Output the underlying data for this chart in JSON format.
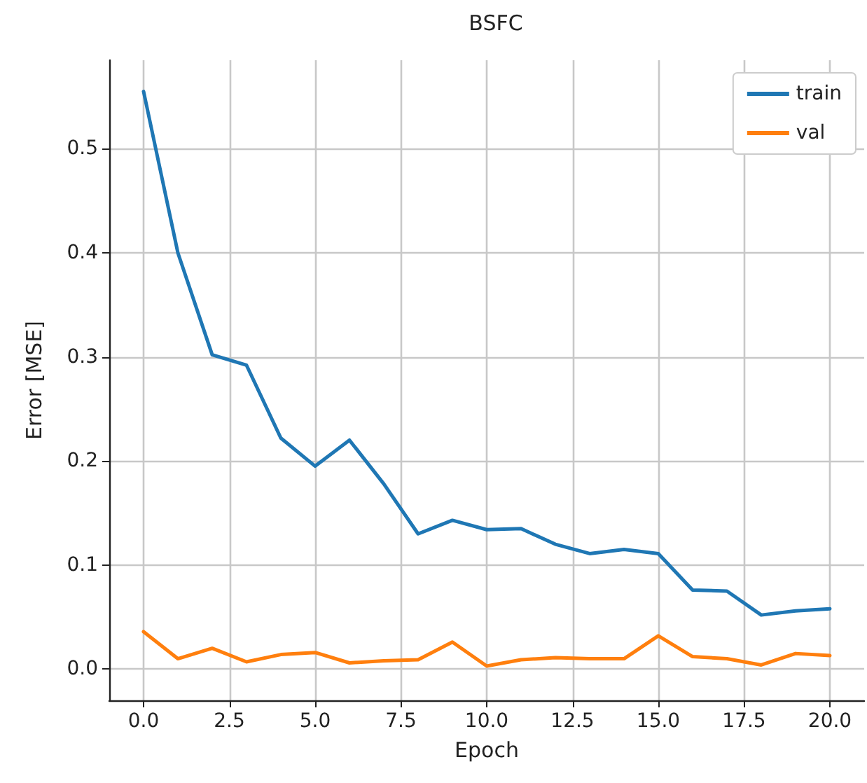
{
  "chart_data": {
    "type": "line",
    "title": "BSFC",
    "xlabel": "Epoch",
    "ylabel": "Error [MSE]",
    "x": [
      0,
      1,
      2,
      3,
      4,
      5,
      6,
      7,
      8,
      9,
      10,
      11,
      12,
      13,
      14,
      15,
      16,
      17,
      18,
      19,
      20
    ],
    "series": [
      {
        "name": "train",
        "color": "#1f77b4",
        "values": [
          0.555,
          0.4,
          0.302,
          0.292,
          0.222,
          0.195,
          0.22,
          0.178,
          0.13,
          0.143,
          0.134,
          0.135,
          0.12,
          0.111,
          0.115,
          0.111,
          0.076,
          0.075,
          0.052,
          0.056,
          0.058
        ]
      },
      {
        "name": "val",
        "color": "#ff7f0e",
        "values": [
          0.036,
          0.01,
          0.02,
          0.007,
          0.014,
          0.016,
          0.006,
          0.008,
          0.009,
          0.026,
          0.003,
          0.009,
          0.011,
          0.01,
          0.01,
          0.032,
          0.012,
          0.01,
          0.004,
          0.015,
          0.013
        ]
      }
    ],
    "xlim": [
      -1,
      21
    ],
    "xticks": [
      {
        "value": 0,
        "label": "0.0"
      },
      {
        "value": 2.5,
        "label": "2.5"
      },
      {
        "value": 5,
        "label": "5.0"
      },
      {
        "value": 7.5,
        "label": "7.5"
      },
      {
        "value": 10,
        "label": "10.0"
      },
      {
        "value": 12.5,
        "label": "12.5"
      },
      {
        "value": 15,
        "label": "15.0"
      },
      {
        "value": 17.5,
        "label": "17.5"
      },
      {
        "value": 20,
        "label": "20.0"
      }
    ],
    "ylim": [
      -0.03,
      0.585
    ],
    "yticks": [
      {
        "value": 0,
        "label": "0.0"
      },
      {
        "value": 0.1,
        "label": "0.1"
      },
      {
        "value": 0.2,
        "label": "0.2"
      },
      {
        "value": 0.3,
        "label": "0.3"
      },
      {
        "value": 0.4,
        "label": "0.4"
      },
      {
        "value": 0.5,
        "label": "0.5"
      }
    ],
    "grid": true,
    "legend": "top right",
    "marker": "none",
    "line_style": "solid"
  }
}
